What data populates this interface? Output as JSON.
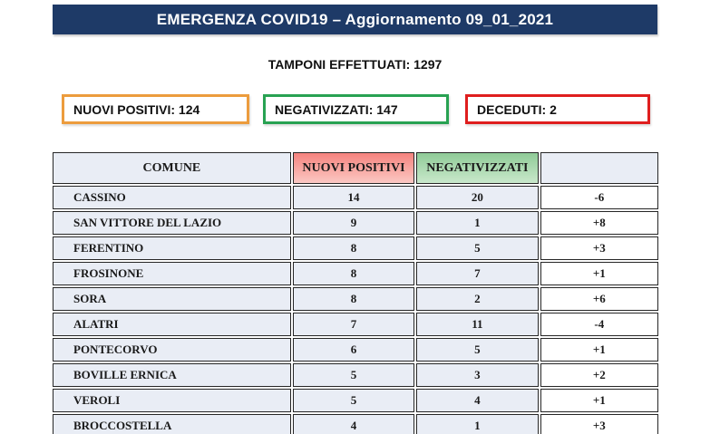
{
  "banner": {
    "title": "EMERGENZA COVID19 – Aggiornamento 09_01_2021",
    "bg_color": "#1E3A67"
  },
  "summary": {
    "tamponi_line": "TAMPONI EFFETTUATI: 1297"
  },
  "badges": [
    {
      "label": "NUOVI POSITIVI: 124",
      "border_color": "#EC9C3D"
    },
    {
      "label": "NEGATIVIZZATI: 147",
      "border_color": "#28A252"
    },
    {
      "label": "DECEDUTI: 2",
      "border_color": "#DF1E1E"
    }
  ],
  "table": {
    "headers": [
      "COMUNE",
      "NUOVI POSITIVI",
      "NEGATIVIZZATI",
      ""
    ],
    "header_colors": {
      "comune_bg": "#E9EDF5",
      "nuovi_positivi_bg_top": "#F5837E",
      "nuovi_positivi_bg_bottom": "#FBC8C3",
      "negativizzati_bg_top": "#8FCB97",
      "negativizzati_bg_bottom": "#C9E8CB"
    },
    "rows": [
      {
        "comune": "CASSINO",
        "nuovi_positivi": "14",
        "negativizzati": "20",
        "delta": "-6"
      },
      {
        "comune": "SAN VITTORE DEL LAZIO",
        "nuovi_positivi": "9",
        "negativizzati": "1",
        "delta": "+8"
      },
      {
        "comune": "FERENTINO",
        "nuovi_positivi": "8",
        "negativizzati": "5",
        "delta": "+3"
      },
      {
        "comune": "FROSINONE",
        "nuovi_positivi": "8",
        "negativizzati": "7",
        "delta": "+1"
      },
      {
        "comune": "SORA",
        "nuovi_positivi": "8",
        "negativizzati": "2",
        "delta": "+6"
      },
      {
        "comune": "ALATRI",
        "nuovi_positivi": "7",
        "negativizzati": "11",
        "delta": "-4"
      },
      {
        "comune": "PONTECORVO",
        "nuovi_positivi": "6",
        "negativizzati": "5",
        "delta": "+1"
      },
      {
        "comune": "BOVILLE ERNICA",
        "nuovi_positivi": "5",
        "negativizzati": "3",
        "delta": "+2"
      },
      {
        "comune": "VEROLI",
        "nuovi_positivi": "5",
        "negativizzati": "4",
        "delta": "+1"
      },
      {
        "comune": "BROCCOSTELLA",
        "nuovi_positivi": "4",
        "negativizzati": "1",
        "delta": "+3"
      }
    ]
  },
  "chart_data": {
    "type": "table",
    "title": "EMERGENZA COVID19 – Aggiornamento 09_01_2021",
    "summary": {
      "tamponi_effettuati": 1297,
      "nuovi_positivi": 124,
      "negativizzati": 147,
      "deceduti": 2
    },
    "columns": [
      "COMUNE",
      "NUOVI POSITIVI",
      "NEGATIVIZZATI",
      ""
    ],
    "rows": [
      [
        "CASSINO",
        14,
        20,
        -6
      ],
      [
        "SAN VITTORE DEL LAZIO",
        9,
        1,
        8
      ],
      [
        "FERENTINO",
        8,
        5,
        3
      ],
      [
        "FROSINONE",
        8,
        7,
        1
      ],
      [
        "SORA",
        8,
        2,
        6
      ],
      [
        "ALATRI",
        7,
        11,
        -4
      ],
      [
        "PONTECORVO",
        6,
        5,
        1
      ],
      [
        "BOVILLE ERNICA",
        5,
        3,
        2
      ],
      [
        "VEROLI",
        5,
        4,
        1
      ],
      [
        "BROCCOSTELLA",
        4,
        1,
        3
      ]
    ]
  }
}
